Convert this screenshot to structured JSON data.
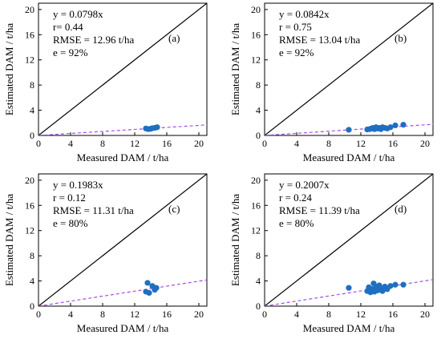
{
  "chart_data": [
    {
      "type": "scatter",
      "panel_label": "(a)",
      "xlabel": "Measured DAM / t/ha",
      "ylabel": "Estimated DAM / t/ha",
      "xlim": [
        0,
        21
      ],
      "ylim": [
        0,
        21
      ],
      "xticks": [
        0,
        4,
        8,
        12,
        16,
        20
      ],
      "yticks": [
        0,
        4,
        8,
        12,
        16,
        20
      ],
      "annotations": [
        "y = 0.0798x",
        "r= 0.44",
        "RMSE = 12.96 t/ha",
        "e = 92%"
      ],
      "fit_slope": 0.0798,
      "points": [
        [
          13.4,
          1.1
        ],
        [
          13.7,
          1.0
        ],
        [
          14.0,
          1.05
        ],
        [
          14.2,
          1.15
        ],
        [
          14.5,
          1.2
        ],
        [
          14.8,
          1.3
        ]
      ]
    },
    {
      "type": "scatter",
      "panel_label": "(b)",
      "xlabel": "Measured DAM / t/ha",
      "ylabel": "Estimated DAM / t/ha",
      "xlim": [
        0,
        21
      ],
      "ylim": [
        0,
        21
      ],
      "xticks": [
        0,
        4,
        8,
        12,
        16,
        20
      ],
      "yticks": [
        0,
        4,
        8,
        12,
        16,
        20
      ],
      "annotations": [
        "y = 0.0842x",
        "r = 0.75",
        "RMSE = 13.04 t/ha",
        "e = 92%"
      ],
      "fit_slope": 0.0842,
      "points": [
        [
          10.5,
          0.9
        ],
        [
          12.8,
          0.95
        ],
        [
          13.1,
          1.0
        ],
        [
          13.3,
          1.1
        ],
        [
          13.5,
          1.2
        ],
        [
          13.7,
          1.0
        ],
        [
          13.9,
          1.3
        ],
        [
          14.1,
          1.1
        ],
        [
          14.3,
          1.2
        ],
        [
          14.5,
          1.0
        ],
        [
          14.7,
          1.3
        ],
        [
          15.0,
          1.2
        ],
        [
          15.3,
          1.1
        ],
        [
          15.7,
          1.3
        ],
        [
          16.3,
          1.6
        ],
        [
          17.3,
          1.7
        ]
      ]
    },
    {
      "type": "scatter",
      "panel_label": "(c)",
      "xlabel": "Measured DAM / t/ha",
      "ylabel": "Estimated DAM / t/ha",
      "xlim": [
        0,
        21
      ],
      "ylim": [
        0,
        21
      ],
      "xticks": [
        0,
        4,
        8,
        12,
        16,
        20
      ],
      "yticks": [
        0,
        4,
        8,
        12,
        16,
        20
      ],
      "annotations": [
        "y = 0.1983x",
        "r = 0.12",
        "RMSE = 11.31 t/ha",
        "e = 80%"
      ],
      "fit_slope": 0.1983,
      "points": [
        [
          13.4,
          2.3
        ],
        [
          13.6,
          3.7
        ],
        [
          13.8,
          2.1
        ],
        [
          14.2,
          3.2
        ],
        [
          14.5,
          2.6
        ],
        [
          14.7,
          2.9
        ]
      ]
    },
    {
      "type": "scatter",
      "panel_label": "(d)",
      "xlabel": "Measured DAM / t/ha",
      "ylabel": "Estimated DAM / t/ha",
      "xlim": [
        0,
        21
      ],
      "ylim": [
        0,
        21
      ],
      "xticks": [
        0,
        4,
        8,
        12,
        16,
        20
      ],
      "yticks": [
        0,
        4,
        8,
        12,
        16,
        20
      ],
      "annotations": [
        "y = 0.2007x",
        "r = 0.24",
        "RMSE = 11.39 t/ha",
        "e = 80%"
      ],
      "fit_slope": 0.2007,
      "points": [
        [
          10.5,
          2.9
        ],
        [
          12.8,
          2.4
        ],
        [
          13.0,
          3.0
        ],
        [
          13.2,
          2.2
        ],
        [
          13.4,
          2.7
        ],
        [
          13.6,
          3.6
        ],
        [
          13.7,
          2.3
        ],
        [
          13.9,
          3.1
        ],
        [
          14.1,
          2.5
        ],
        [
          14.3,
          3.3
        ],
        [
          14.5,
          2.8
        ],
        [
          14.7,
          2.4
        ],
        [
          15.0,
          3.1
        ],
        [
          15.3,
          2.7
        ],
        [
          15.7,
          3.2
        ],
        [
          16.3,
          3.4
        ],
        [
          17.3,
          3.4
        ]
      ]
    }
  ]
}
